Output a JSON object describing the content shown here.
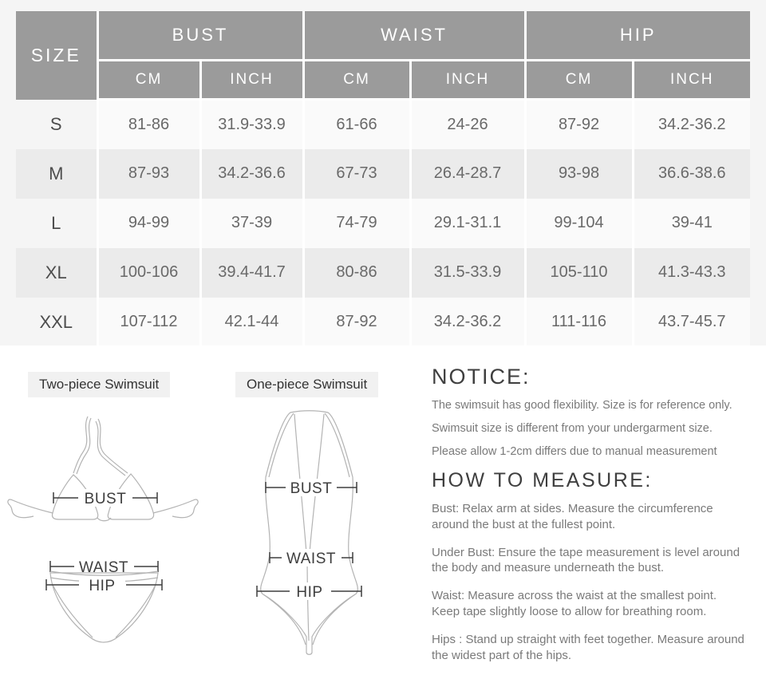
{
  "colors": {
    "top_band_bg": "#f5f5f5",
    "table_header_bg": "#9b9b9b",
    "table_row_alt_bg": "#ebebeb",
    "chip_bg": "#f1f1f1",
    "heading_text": "#3f3f3f",
    "body_text": "#7a7a7a"
  },
  "size_table": {
    "corner_header": "SIZE",
    "groups": [
      "BUST",
      "WAIST",
      "HIP"
    ],
    "sub_headers": [
      "CM",
      "INCH",
      "CM",
      "INCH",
      "CM",
      "INCH"
    ],
    "rows": [
      {
        "size": "S",
        "values": [
          "81-86",
          "31.9-33.9",
          "61-66",
          "24-26",
          "87-92",
          "34.2-36.2"
        ]
      },
      {
        "size": "M",
        "values": [
          "87-93",
          "34.2-36.6",
          "67-73",
          "26.4-28.7",
          "93-98",
          "36.6-38.6"
        ]
      },
      {
        "size": "L",
        "values": [
          "94-99",
          "37-39",
          "74-79",
          "29.1-31.1",
          "99-104",
          "39-41"
        ]
      },
      {
        "size": "XL",
        "values": [
          "100-106",
          "39.4-41.7",
          "80-86",
          "31.5-33.9",
          "105-110",
          "41.3-43.3"
        ]
      },
      {
        "size": "XXL",
        "values": [
          "107-112",
          "42.1-44",
          "87-92",
          "34.2-36.2",
          "111-116",
          "43.7-45.7"
        ]
      }
    ]
  },
  "diagrams": {
    "two_piece": {
      "label": "Two-piece Swimsuit"
    },
    "one_piece": {
      "label": "One-piece Swimsuit"
    },
    "measure_labels": {
      "bust": "BUST",
      "waist": "WAIST",
      "hip": "HIP"
    }
  },
  "notice": {
    "title": "NOTICE:",
    "lines": [
      "The swimsuit has good flexibility. Size is for reference only.",
      "Swimsuit size is different from your undergarment size.",
      "Please allow 1-2cm differs due to manual measurement"
    ]
  },
  "how_to_measure": {
    "title": "HOW TO MEASURE:",
    "paragraphs": [
      [
        "Bust: Relax arm at sides. Measure the circumference",
        "around the bust at the fullest point."
      ],
      [
        "Under Bust: Ensure the tape measurement is level around",
        "the body and measure underneath the bust."
      ],
      [
        "Waist: Measure across the waist at the smallest point.",
        "Keep tape slightly loose to allow for breathing room."
      ],
      [
        "Hips : Stand up straight with feet together. Measure around",
        "the widest part of the hips."
      ]
    ]
  }
}
